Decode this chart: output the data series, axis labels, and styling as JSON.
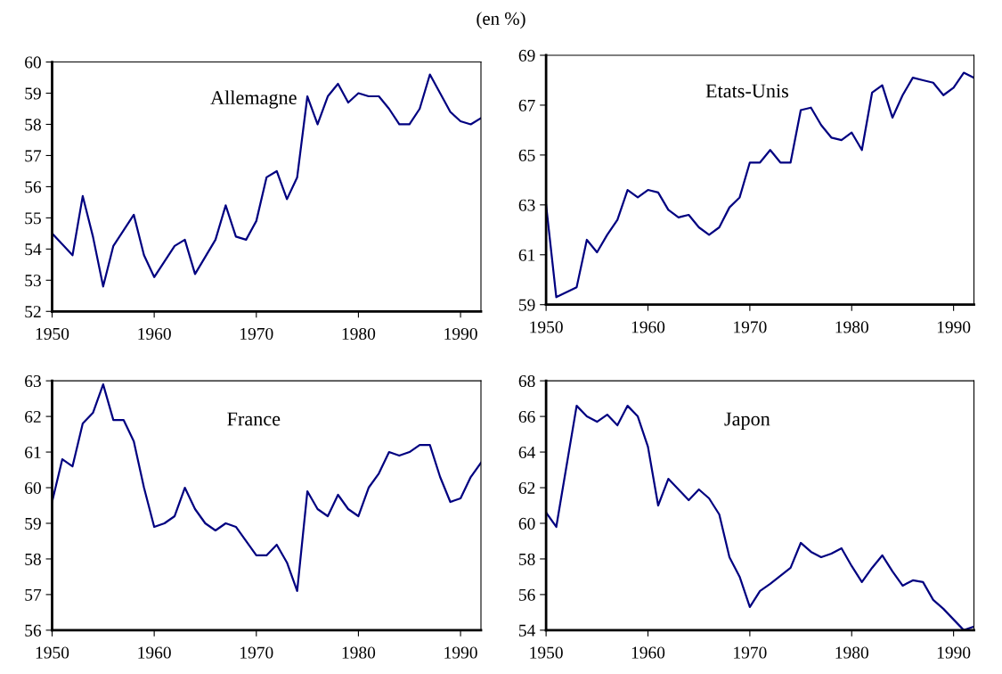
{
  "chart_data": [
    {
      "type": "line",
      "annotations": [
        "(en %)"
      ],
      "x": [
        1950,
        1951,
        1952,
        1953,
        1954,
        1955,
        1956,
        1957,
        1958,
        1959,
        1960,
        1961,
        1962,
        1963,
        1964,
        1965,
        1966,
        1967,
        1968,
        1969,
        1970,
        1971,
        1972,
        1973,
        1974,
        1975,
        1976,
        1977,
        1978,
        1979,
        1980,
        1981,
        1982,
        1983,
        1984,
        1985,
        1986,
        1987,
        1988,
        1989,
        1990,
        1991,
        1992
      ],
      "xlim": [
        1950,
        1992
      ],
      "xticks": [
        1950,
        1960,
        1970,
        1980,
        1990
      ],
      "ylim": [
        52,
        60
      ],
      "yticks": [
        52,
        53,
        54,
        55,
        56,
        57,
        58,
        59,
        60
      ],
      "grid": false,
      "legend": false,
      "series": [
        {
          "name": "Allemagne",
          "color": "#000080",
          "values": [
            54.5,
            54.15,
            53.8,
            55.7,
            54.4,
            52.8,
            54.1,
            54.6,
            55.1,
            53.8,
            53.1,
            53.6,
            54.1,
            54.3,
            53.2,
            53.75,
            54.3,
            55.4,
            54.4,
            54.3,
            54.9,
            56.3,
            56.5,
            55.6,
            56.3,
            58.9,
            58.0,
            58.9,
            59.3,
            58.7,
            59.0,
            58.9,
            58.9,
            58.5,
            58.0,
            58.0,
            58.5,
            59.6,
            59.0,
            58.4,
            58.1,
            58.0,
            58.2
          ]
        }
      ]
    },
    {
      "type": "line",
      "x": [
        1950,
        1951,
        1952,
        1953,
        1954,
        1955,
        1956,
        1957,
        1958,
        1959,
        1960,
        1961,
        1962,
        1963,
        1964,
        1965,
        1966,
        1967,
        1968,
        1969,
        1970,
        1971,
        1972,
        1973,
        1974,
        1975,
        1976,
        1977,
        1978,
        1979,
        1980,
        1981,
        1982,
        1983,
        1984,
        1985,
        1986,
        1987,
        1988,
        1989,
        1990,
        1991,
        1992
      ],
      "xlim": [
        1950,
        1992
      ],
      "xticks": [
        1950,
        1960,
        1970,
        1980,
        1990
      ],
      "ylim": [
        59,
        69
      ],
      "yticks": [
        59,
        61,
        63,
        65,
        67,
        69
      ],
      "grid": false,
      "legend": false,
      "series": [
        {
          "name": "Etats-Unis",
          "color": "#000080",
          "values": [
            63.0,
            59.3,
            59.5,
            59.7,
            61.6,
            61.1,
            61.8,
            62.4,
            63.6,
            63.3,
            63.6,
            63.5,
            62.8,
            62.5,
            62.6,
            62.1,
            61.8,
            62.1,
            62.9,
            63.3,
            64.7,
            64.7,
            65.2,
            64.7,
            64.7,
            66.8,
            66.9,
            66.2,
            65.7,
            65.6,
            65.9,
            65.2,
            67.5,
            67.8,
            66.5,
            67.4,
            68.1,
            68.0,
            67.9,
            67.4,
            67.7,
            68.3,
            68.1
          ]
        }
      ]
    },
    {
      "type": "line",
      "x": [
        1950,
        1951,
        1952,
        1953,
        1954,
        1955,
        1956,
        1957,
        1958,
        1959,
        1960,
        1961,
        1962,
        1963,
        1964,
        1965,
        1966,
        1967,
        1968,
        1969,
        1970,
        1971,
        1972,
        1973,
        1974,
        1975,
        1976,
        1977,
        1978,
        1979,
        1980,
        1981,
        1982,
        1983,
        1984,
        1985,
        1986,
        1987,
        1988,
        1989,
        1990,
        1991,
        1992
      ],
      "xlim": [
        1950,
        1992
      ],
      "xticks": [
        1950,
        1960,
        1970,
        1980,
        1990
      ],
      "ylim": [
        56,
        63
      ],
      "yticks": [
        56,
        57,
        58,
        59,
        60,
        61,
        62,
        63
      ],
      "grid": false,
      "legend": false,
      "series": [
        {
          "name": "France",
          "color": "#000080",
          "values": [
            59.6,
            60.8,
            60.6,
            61.8,
            62.1,
            62.9,
            61.9,
            61.9,
            61.3,
            60.0,
            58.9,
            59.0,
            59.2,
            60.0,
            59.4,
            59.0,
            58.8,
            59.0,
            58.9,
            58.5,
            58.1,
            58.1,
            58.4,
            57.9,
            57.1,
            59.9,
            59.4,
            59.2,
            59.8,
            59.4,
            59.2,
            60.0,
            60.4,
            61.0,
            60.9,
            61.0,
            61.2,
            61.2,
            60.3,
            59.6,
            59.7,
            60.3,
            60.7
          ]
        }
      ]
    },
    {
      "type": "line",
      "x": [
        1950,
        1951,
        1952,
        1953,
        1954,
        1955,
        1956,
        1957,
        1958,
        1959,
        1960,
        1961,
        1962,
        1963,
        1964,
        1965,
        1966,
        1967,
        1968,
        1969,
        1970,
        1971,
        1972,
        1973,
        1974,
        1975,
        1976,
        1977,
        1978,
        1979,
        1980,
        1981,
        1982,
        1983,
        1984,
        1985,
        1986,
        1987,
        1988,
        1989,
        1990,
        1991,
        1992
      ],
      "xlim": [
        1950,
        1992
      ],
      "xticks": [
        1950,
        1960,
        1970,
        1980,
        1990
      ],
      "ylim": [
        54,
        68
      ],
      "yticks": [
        54,
        56,
        58,
        60,
        62,
        64,
        66,
        68
      ],
      "grid": false,
      "legend": false,
      "series": [
        {
          "name": "Japon",
          "color": "#000080",
          "values": [
            60.6,
            59.8,
            63.2,
            66.6,
            66.0,
            65.7,
            66.1,
            65.5,
            66.6,
            66.0,
            64.3,
            61.0,
            62.5,
            61.9,
            61.3,
            61.9,
            61.4,
            60.5,
            58.1,
            57.0,
            55.3,
            56.2,
            56.6,
            57.05,
            57.5,
            58.9,
            58.4,
            58.1,
            58.3,
            58.6,
            57.6,
            56.7,
            57.5,
            58.2,
            57.3,
            56.5,
            56.8,
            56.7,
            55.7,
            55.2,
            54.6,
            54.0,
            54.2
          ]
        }
      ]
    }
  ]
}
